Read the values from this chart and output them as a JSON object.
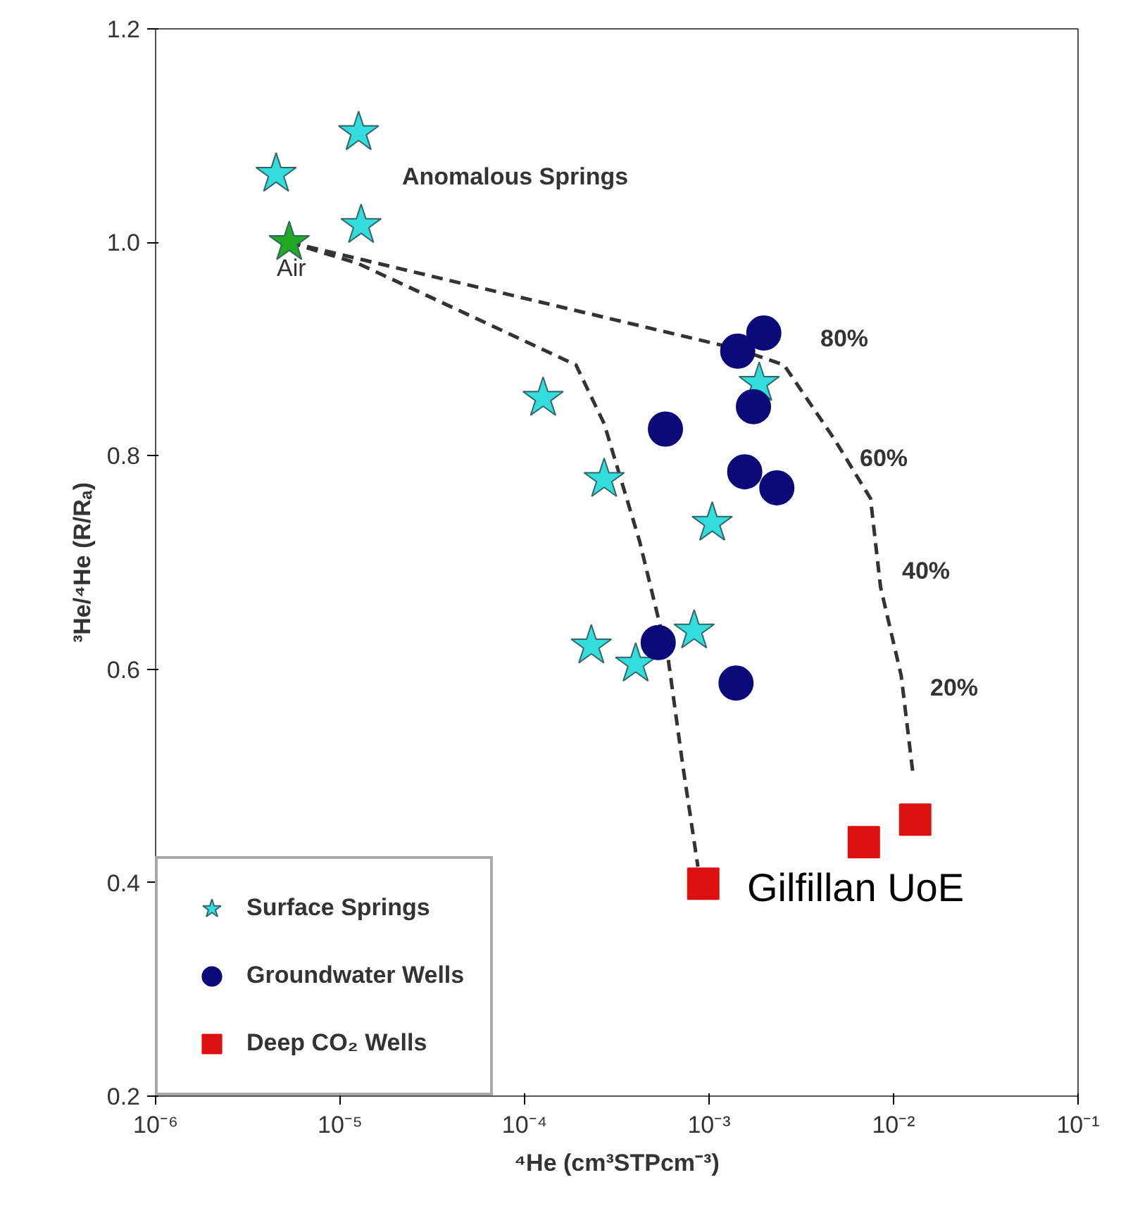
{
  "chart_data": {
    "type": "scatter",
    "xlabel": "⁴He (cm³STPcm⁻³)",
    "ylabel": "³He/⁴He (R/Rₐ)",
    "log": "x",
    "grid": false,
    "legend": "bottom left",
    "xlim": [
      1e-06,
      0.1
    ],
    "ylim": [
      0.2,
      1.2
    ],
    "xticks": [
      {
        "value": 1e-06,
        "label": "10⁻⁶"
      },
      {
        "value": 1e-05,
        "label": "10⁻⁵"
      },
      {
        "value": 0.0001,
        "label": "10⁻⁴"
      },
      {
        "value": 0.001,
        "label": "10⁻³"
      },
      {
        "value": 0.01,
        "label": "10⁻²"
      },
      {
        "value": 0.1,
        "label": "10⁻¹"
      }
    ],
    "yticks": [
      {
        "value": 0.2,
        "label": "0.2"
      },
      {
        "value": 0.4,
        "label": "0.4"
      },
      {
        "value": 0.6,
        "label": "0.6"
      },
      {
        "value": 0.8,
        "label": "0.8"
      },
      {
        "value": 1.0,
        "label": "1.0"
      },
      {
        "value": 1.2,
        "label": "1.2"
      }
    ],
    "series": [
      {
        "type": "line",
        "color": "#333333",
        "line_style": "dashed",
        "marker": "none",
        "x": [
          5.3e-06,
          1.26e-05,
          0.00019,
          0.00027,
          0.00042,
          0.0006,
          0.00072,
          0.00087
        ],
        "values": [
          1.0,
          0.98,
          0.885,
          0.83,
          0.72,
          0.61,
          0.51,
          0.415
        ]
      },
      {
        "type": "line",
        "color": "#333333",
        "line_style": "dashed",
        "marker": "none",
        "x": [
          5.3e-06,
          0.00143,
          0.00255,
          0.0048,
          0.0075,
          0.0085,
          0.011,
          0.0127
        ],
        "values": [
          1.0,
          0.9,
          0.885,
          0.815,
          0.76,
          0.677,
          0.594,
          0.504
        ]
      },
      {
        "name": "Surface Springs",
        "color": "#33dddd",
        "marker": "star",
        "x": [
          4.5e-06,
          1.26e-05,
          1.3e-05,
          0.000126,
          0.00027,
          0.00104,
          0.00023,
          0.0004,
          0.00083,
          0.00187
        ],
        "values": [
          1.064,
          1.103,
          1.016,
          0.854,
          0.778,
          0.737,
          0.622,
          0.605,
          0.636,
          0.868
        ]
      },
      {
        "color": "#22aa22",
        "marker": "star",
        "x": [
          5.3e-06
        ],
        "values": [
          1.0
        ]
      },
      {
        "name": "Groundwater Wells",
        "color": "#0a0a78",
        "marker": "circle",
        "x": [
          0.00143,
          0.00198,
          0.00174,
          0.00058,
          0.00156,
          0.00233,
          0.00053,
          0.0014
        ],
        "values": [
          0.898,
          0.915,
          0.846,
          0.825,
          0.785,
          0.77,
          0.625,
          0.587
        ]
      },
      {
        "name": "Deep CO₂ Wells",
        "color": "#dd1111",
        "marker": "square",
        "x": [
          0.00093,
          0.0069,
          0.0131
        ],
        "values": [
          0.399,
          0.438,
          0.459
        ]
      }
    ],
    "annotations": [
      "Anomalous Springs",
      "Air",
      "80%",
      "60%",
      "40%",
      "20%",
      "Gilfillan UoE"
    ]
  }
}
